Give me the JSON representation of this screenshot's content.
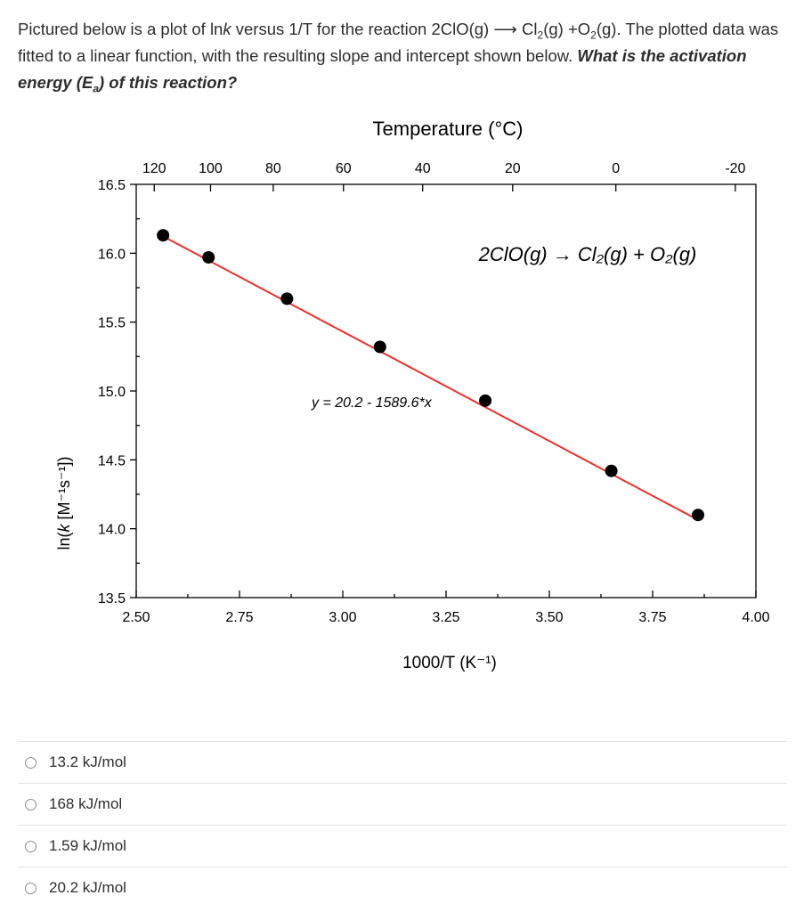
{
  "question": {
    "part1": "Pictured below is a plot of ln",
    "k": "k",
    "part2": " versus 1/T for the reaction 2ClO(g) ",
    "arrow": "⟶",
    "part3": " Cl",
    "sub2a": "2",
    "part4": "(g) +O",
    "sub2b": "2",
    "part5": "(g). The plotted data was fitted to a linear function, with the resulting slope and intercept shown below. ",
    "bold1": "What is the activation energy (E",
    "bold_sub": "a",
    "bold2": ") of this reaction?"
  },
  "chart_data": {
    "type": "scatter",
    "xlabel": "1000/T (K⁻¹)",
    "top_axis_label": "Temperature (°C)",
    "xlim": [
      2.5,
      4.0
    ],
    "ylim": [
      13.5,
      16.5
    ],
    "x_ticks": [
      "2.50",
      "2.75",
      "3.00",
      "3.25",
      "3.50",
      "3.75",
      "4.00"
    ],
    "x_tick_values": [
      2.5,
      2.75,
      3.0,
      3.25,
      3.5,
      3.75,
      4.0
    ],
    "y_ticks": [
      "13.5",
      "14.0",
      "14.5",
      "15.0",
      "15.5",
      "16.0",
      "16.5"
    ],
    "y_tick_values": [
      13.5,
      14.0,
      14.5,
      15.0,
      15.5,
      16.0,
      16.5
    ],
    "top_ticks": [
      "120",
      "100",
      "80",
      "60",
      "40",
      "20",
      "0",
      "-20"
    ],
    "top_tick_celsius": [
      120,
      100,
      80,
      60,
      40,
      20,
      0,
      -20
    ],
    "ylabel_prefix": "ln(",
    "ylabel_k": "k",
    "ylabel_suffix": " [M⁻¹s⁻¹])",
    "points": [
      {
        "x": 2.565,
        "y": 16.13
      },
      {
        "x": 2.675,
        "y": 15.97
      },
      {
        "x": 2.865,
        "y": 15.67
      },
      {
        "x": 3.09,
        "y": 15.32
      },
      {
        "x": 3.345,
        "y": 14.93
      },
      {
        "x": 3.65,
        "y": 14.42
      },
      {
        "x": 3.86,
        "y": 14.1
      }
    ],
    "fit": {
      "intercept": 20.2,
      "slope": -1589.6,
      "x_start": 2.565,
      "x_end": 3.86
    },
    "fit_label": "y = 20.2 - 1589.6*x",
    "annotation": "2ClO(g) → Cl₂(g) + O₂(g)",
    "colors": {
      "points": "#000000",
      "line": "#e8322d",
      "axis": "#000000"
    }
  },
  "answers": [
    {
      "label": "13.2 kJ/mol"
    },
    {
      "label": "168 kJ/mol"
    },
    {
      "label": "1.59 kJ/mol"
    },
    {
      "label": "20.2 kJ/mol"
    }
  ]
}
